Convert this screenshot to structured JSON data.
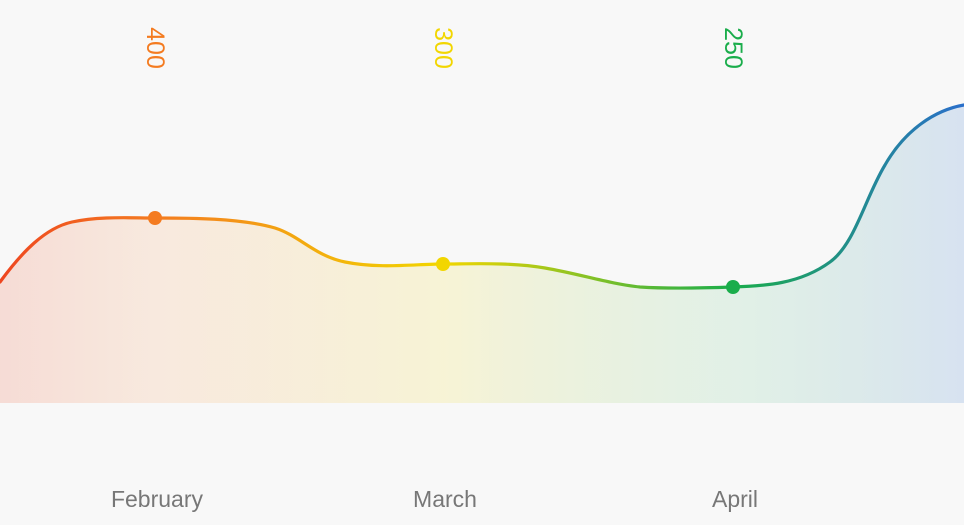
{
  "chart_data": {
    "type": "area",
    "categories": [
      "February",
      "March",
      "April"
    ],
    "values": [
      400,
      300,
      250
    ],
    "point_colors": [
      "#f47b20",
      "#f2d600",
      "#1aad4b"
    ],
    "value_labels": [
      "400",
      "300",
      "250"
    ],
    "grid": false,
    "legend": "none",
    "title": "",
    "xlabel": "",
    "ylabel": ""
  },
  "colors": {
    "background": "#f8f8f8",
    "gradient": [
      "#ee4620",
      "#f47b20",
      "#f2d600",
      "#1aad4b",
      "#2a6fcb"
    ],
    "axis_label": "#777777"
  }
}
